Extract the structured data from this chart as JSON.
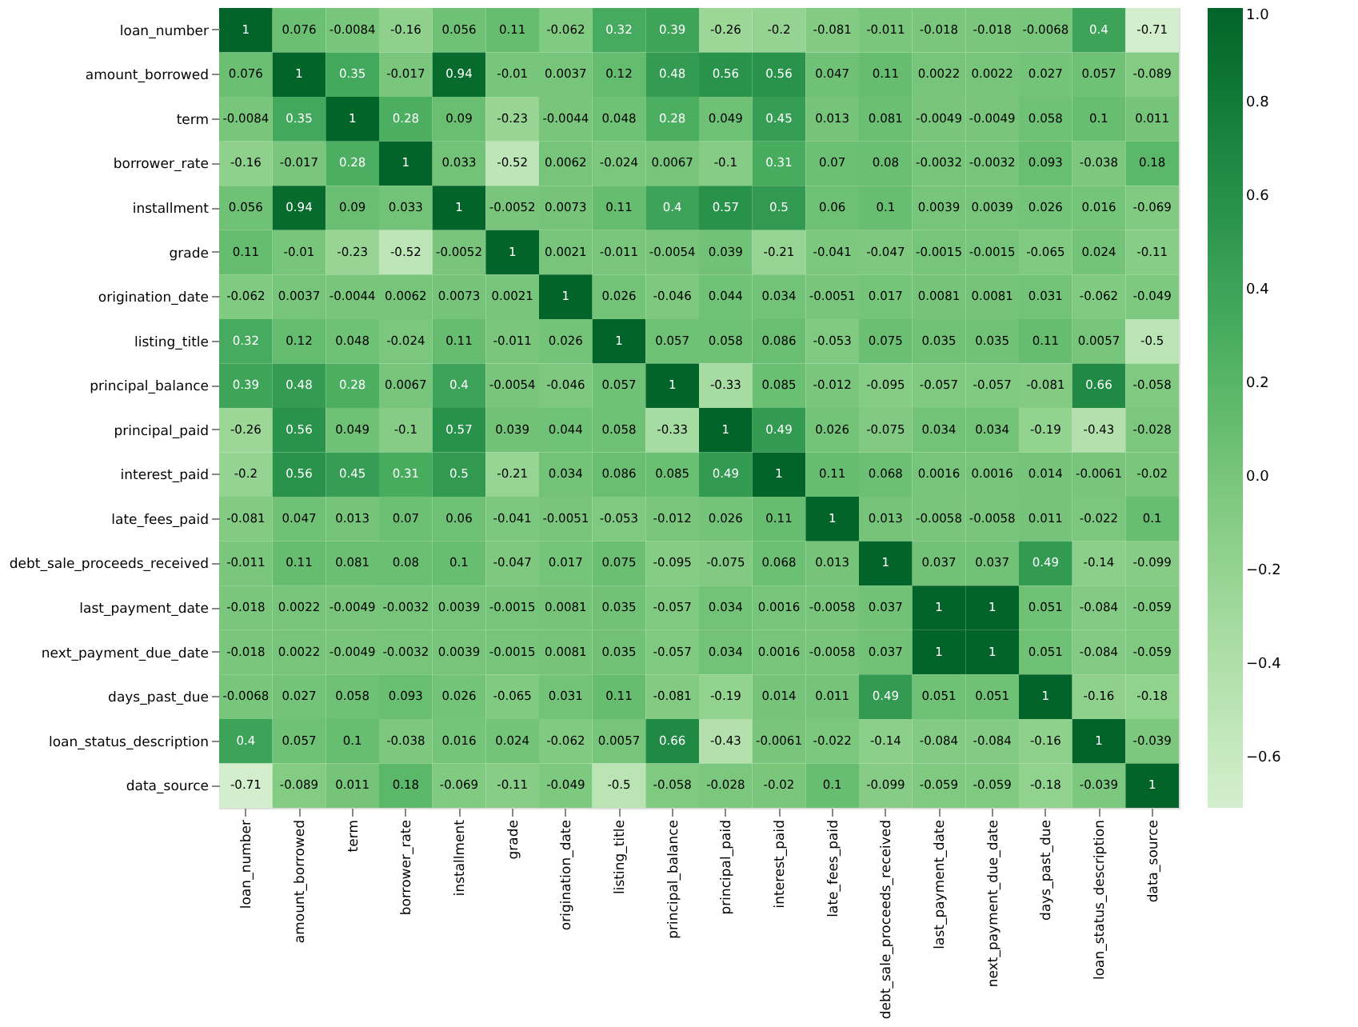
{
  "chart_data": {
    "type": "heatmap",
    "categories": [
      "loan_number",
      "amount_borrowed",
      "term",
      "borrower_rate",
      "installment",
      "grade",
      "origination_date",
      "listing_title",
      "principal_balance",
      "principal_paid",
      "interest_paid",
      "late_fees_paid",
      "debt_sale_proceeds_received",
      "last_payment_date",
      "next_payment_due_date",
      "days_past_due",
      "loan_status_description",
      "data_source"
    ],
    "y_categories": [
      "loan_number",
      "amount_borrowed",
      "term",
      "borrower_rate",
      "installment",
      "grade",
      "origination_date",
      "listing_title",
      "principal_balance",
      "principal_paid",
      "interest_paid",
      "late_fees_paid",
      "debt_sale_proceeds_received",
      "last_payment_date",
      "next_payment_due_date",
      "days_past_due",
      "loan_status_description",
      "data_source"
    ],
    "cells": [
      [
        1,
        0.076,
        -0.0084,
        -0.16,
        0.056,
        0.11,
        -0.062,
        0.32,
        0.39,
        -0.26,
        -0.2,
        -0.081,
        -0.011,
        -0.018,
        -0.018,
        -0.0068,
        0.4,
        -0.71
      ],
      [
        0.076,
        1,
        0.35,
        -0.017,
        0.94,
        -0.01,
        0.0037,
        0.12,
        0.48,
        0.56,
        0.56,
        0.047,
        0.11,
        0.0022,
        0.0022,
        0.027,
        0.057,
        -0.089
      ],
      [
        -0.0084,
        0.35,
        1,
        0.28,
        0.09,
        -0.23,
        -0.0044,
        0.048,
        0.28,
        0.049,
        0.45,
        0.013,
        0.081,
        -0.0049,
        -0.0049,
        0.058,
        0.1,
        0.011
      ],
      [
        -0.16,
        -0.017,
        0.28,
        1,
        0.033,
        -0.52,
        0.0062,
        -0.024,
        0.0067,
        -0.1,
        0.31,
        0.07,
        0.08,
        -0.0032,
        -0.0032,
        0.093,
        -0.038,
        0.18
      ],
      [
        0.056,
        0.94,
        0.09,
        0.033,
        1,
        -0.0052,
        0.0073,
        0.11,
        0.4,
        0.57,
        0.5,
        0.06,
        0.1,
        0.0039,
        0.0039,
        0.026,
        0.016,
        -0.069
      ],
      [
        0.11,
        -0.01,
        -0.23,
        -0.52,
        -0.0052,
        1,
        0.0021,
        -0.011,
        -0.0054,
        0.039,
        -0.21,
        -0.041,
        -0.047,
        -0.0015,
        -0.0015,
        -0.065,
        0.024,
        -0.11
      ],
      [
        -0.062,
        0.0037,
        -0.0044,
        0.0062,
        0.0073,
        0.0021,
        1,
        0.026,
        -0.046,
        0.044,
        0.034,
        -0.0051,
        0.017,
        0.0081,
        0.0081,
        0.031,
        -0.062,
        -0.049
      ],
      [
        0.32,
        0.12,
        0.048,
        -0.024,
        0.11,
        -0.011,
        0.026,
        1,
        0.057,
        0.058,
        0.086,
        -0.053,
        0.075,
        0.035,
        0.035,
        0.11,
        0.0057,
        -0.5
      ],
      [
        0.39,
        0.48,
        0.28,
        0.0067,
        0.4,
        -0.0054,
        -0.046,
        0.057,
        1,
        -0.33,
        0.085,
        -0.012,
        -0.095,
        -0.057,
        -0.057,
        -0.081,
        0.66,
        -0.058
      ],
      [
        -0.26,
        0.56,
        0.049,
        -0.1,
        0.57,
        0.039,
        0.044,
        0.058,
        -0.33,
        1,
        0.49,
        0.026,
        -0.075,
        0.034,
        0.034,
        -0.19,
        -0.43,
        -0.028
      ],
      [
        -0.2,
        0.56,
        0.45,
        0.31,
        0.5,
        -0.21,
        0.034,
        0.086,
        0.085,
        0.49,
        1,
        0.11,
        0.068,
        0.0016,
        0.0016,
        0.014,
        -0.0061,
        -0.02
      ],
      [
        -0.081,
        0.047,
        0.013,
        0.07,
        0.06,
        -0.041,
        -0.0051,
        -0.053,
        -0.012,
        0.026,
        0.11,
        1,
        0.013,
        -0.0058,
        -0.0058,
        0.011,
        -0.022,
        0.1
      ],
      [
        -0.011,
        0.11,
        0.081,
        0.08,
        0.1,
        -0.047,
        0.017,
        0.075,
        -0.095,
        -0.075,
        0.068,
        0.013,
        1,
        0.037,
        0.037,
        0.49,
        -0.14,
        -0.099
      ],
      [
        -0.018,
        0.0022,
        -0.0049,
        -0.0032,
        0.0039,
        -0.0015,
        0.0081,
        0.035,
        -0.057,
        0.034,
        0.0016,
        -0.0058,
        0.037,
        1,
        1,
        0.051,
        -0.084,
        -0.059
      ],
      [
        -0.018,
        0.0022,
        -0.0049,
        -0.0032,
        0.0039,
        -0.0015,
        0.0081,
        0.035,
        -0.057,
        0.034,
        0.0016,
        -0.0058,
        0.037,
        1,
        1,
        0.051,
        -0.084,
        -0.059
      ],
      [
        -0.0068,
        0.027,
        0.058,
        0.093,
        0.026,
        -0.065,
        0.031,
        0.11,
        -0.081,
        -0.19,
        0.014,
        0.011,
        0.49,
        0.051,
        0.051,
        1,
        -0.16,
        -0.18
      ],
      [
        0.4,
        0.057,
        0.1,
        -0.038,
        0.016,
        0.024,
        -0.062,
        0.0057,
        0.66,
        -0.43,
        -0.0061,
        -0.022,
        -0.14,
        -0.084,
        -0.084,
        -0.16,
        1,
        -0.039
      ],
      [
        -0.71,
        -0.089,
        0.011,
        0.18,
        -0.069,
        -0.11,
        -0.049,
        -0.5,
        -0.058,
        -0.028,
        -0.02,
        0.1,
        -0.099,
        -0.059,
        -0.059,
        -0.18,
        -0.039,
        1
      ]
    ],
    "clim": [
      -0.71,
      1
    ],
    "cticks": [
      {
        "value": 1,
        "label": "1.0"
      },
      {
        "value": 0.8,
        "label": "0.8"
      },
      {
        "value": 0.6,
        "label": "0.6"
      },
      {
        "value": 0.4,
        "label": "0.4"
      },
      {
        "value": 0.2,
        "label": "0.2"
      },
      {
        "value": 0,
        "label": "0.0"
      },
      {
        "value": -0.2,
        "label": "−0.2"
      },
      {
        "value": -0.4,
        "label": "−0.4"
      },
      {
        "value": -0.6,
        "label": "−0.6"
      }
    ],
    "data_labels": true
  }
}
